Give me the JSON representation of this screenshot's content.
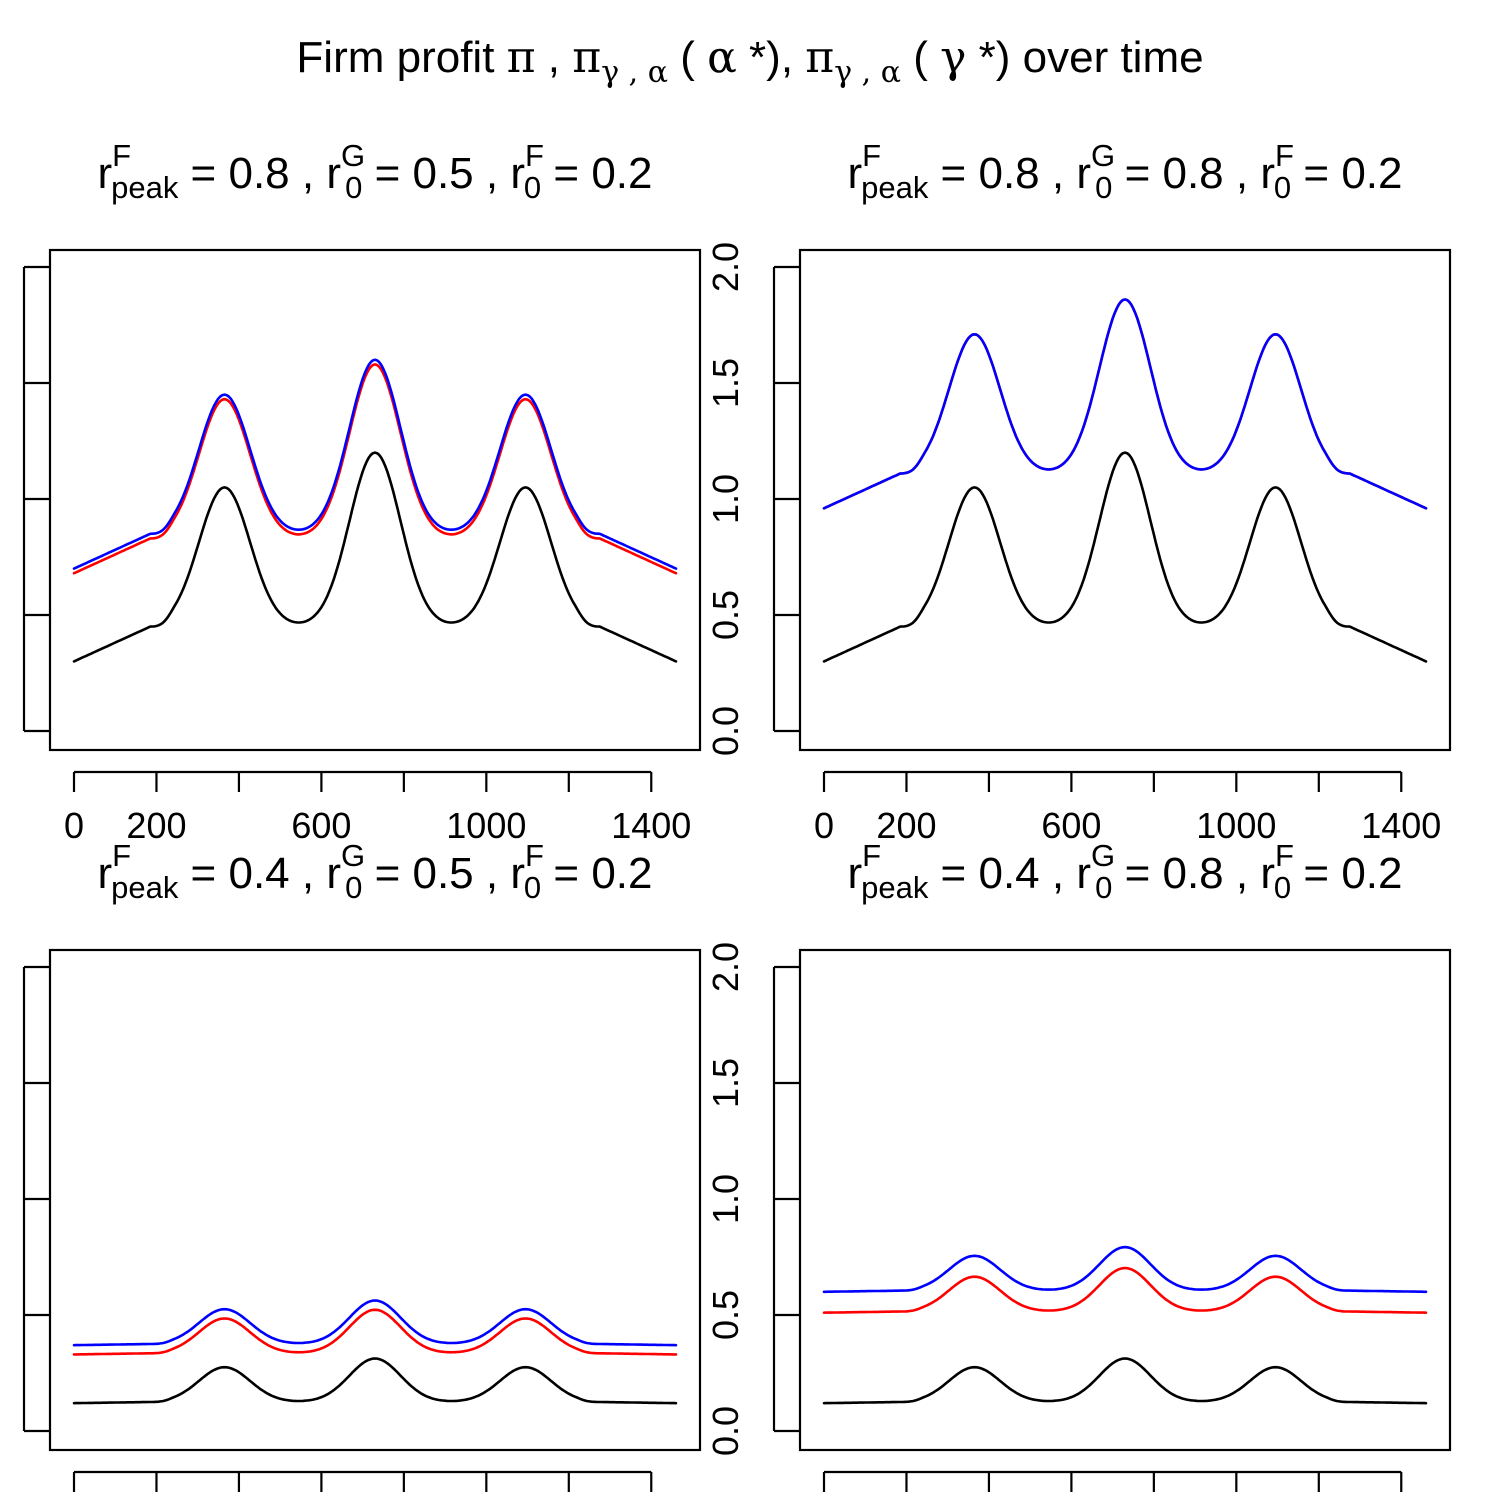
{
  "title": {
    "prefix": "Firm profit  ",
    "pi1": "π",
    "sep1": " ,  ",
    "pi2": "π",
    "sub2": "γ , α",
    "arg2_open": " ( ",
    "arg2_sym": "α",
    "arg2_close": " *),  ",
    "pi3": "π",
    "sub3": "γ , α",
    "arg3_open": " ( ",
    "arg3_sym": "γ",
    "arg3_close": " *)  ",
    "suffix": "over time"
  },
  "chart_data": [
    {
      "type": "line",
      "title": {
        "rpeak": "0.8",
        "r0G": "0.5",
        "r0F": "0.2"
      },
      "xlim": [
        0,
        1460
      ],
      "ylim": [
        0,
        2
      ],
      "x_ticks": [
        0,
        200,
        400,
        600,
        800,
        1000,
        1200,
        1400
      ],
      "x_tick_labels": [
        "0",
        "200",
        "",
        "600",
        "",
        "1000",
        "",
        "1400"
      ],
      "y_ticks": [
        0,
        0.5,
        1,
        1.5,
        2
      ],
      "y_tick_labels": [
        "0.0",
        "0.5",
        "1.0",
        "1.5",
        "2.0"
      ],
      "y_axis_side": "right",
      "base": 0.3,
      "slope_peak": 0.45,
      "amp": 0.6,
      "series": [
        {
          "color": "#000000",
          "offset": 0
        },
        {
          "color": "#ff0000",
          "offset": 0.38
        },
        {
          "color": "#0000ff",
          "offset": 0.4
        }
      ]
    },
    {
      "type": "line",
      "title": {
        "rpeak": "0.8",
        "r0G": "0.8",
        "r0F": "0.2"
      },
      "xlim": [
        0,
        1460
      ],
      "ylim": [
        0,
        2
      ],
      "x_ticks": [
        0,
        200,
        400,
        600,
        800,
        1000,
        1200,
        1400
      ],
      "x_tick_labels": [
        "0",
        "200",
        "",
        "600",
        "",
        "1000",
        "",
        "1400"
      ],
      "y_ticks": [
        0,
        0.5,
        1,
        1.5,
        2
      ],
      "y_tick_labels": [
        "",
        "",
        "",
        "",
        ""
      ],
      "y_axis_side": "left",
      "base": 0.3,
      "slope_peak": 0.45,
      "amp": 0.6,
      "series": [
        {
          "color": "#000000",
          "offset": 0
        },
        {
          "color": "#ff0000",
          "offset": 0.66
        },
        {
          "color": "#0000ff",
          "offset": 0.66
        }
      ]
    },
    {
      "type": "line",
      "title": {
        "rpeak": "0.4",
        "r0G": "0.5",
        "r0F": "0.2"
      },
      "xlim": [
        0,
        1460
      ],
      "ylim": [
        0,
        2
      ],
      "x_ticks": [
        0,
        200,
        400,
        600,
        800,
        1000,
        1200,
        1400
      ],
      "x_tick_labels": [
        "",
        "",
        "",
        "",
        "",
        "",
        "",
        ""
      ],
      "y_ticks": [
        0,
        0.5,
        1,
        1.5,
        2
      ],
      "y_tick_labels": [
        "0.0",
        "0.5",
        "1.0",
        "1.5",
        "2.0"
      ],
      "y_axis_side": "right",
      "base": 0.12,
      "slope_peak": 0.125,
      "amp": 0.15,
      "series": [
        {
          "color": "#000000",
          "offset": 0
        },
        {
          "color": "#ff0000",
          "offset": 0.21
        },
        {
          "color": "#0000ff",
          "offset": 0.25
        }
      ]
    },
    {
      "type": "line",
      "title": {
        "rpeak": "0.4",
        "r0G": "0.8",
        "r0F": "0.2"
      },
      "xlim": [
        0,
        1460
      ],
      "ylim": [
        0,
        2
      ],
      "x_ticks": [
        0,
        200,
        400,
        600,
        800,
        1000,
        1200,
        1400
      ],
      "x_tick_labels": [
        "",
        "",
        "",
        "",
        "",
        "",
        "",
        ""
      ],
      "y_ticks": [
        0,
        0.5,
        1,
        1.5,
        2
      ],
      "y_tick_labels": [
        "",
        "",
        "",
        "",
        ""
      ],
      "y_axis_side": "left",
      "base": 0.12,
      "slope_peak": 0.125,
      "amp": 0.15,
      "series": [
        {
          "color": "#000000",
          "offset": 0
        },
        {
          "color": "#ff0000",
          "offset": 0.39
        },
        {
          "color": "#0000ff",
          "offset": 0.48
        }
      ]
    }
  ]
}
